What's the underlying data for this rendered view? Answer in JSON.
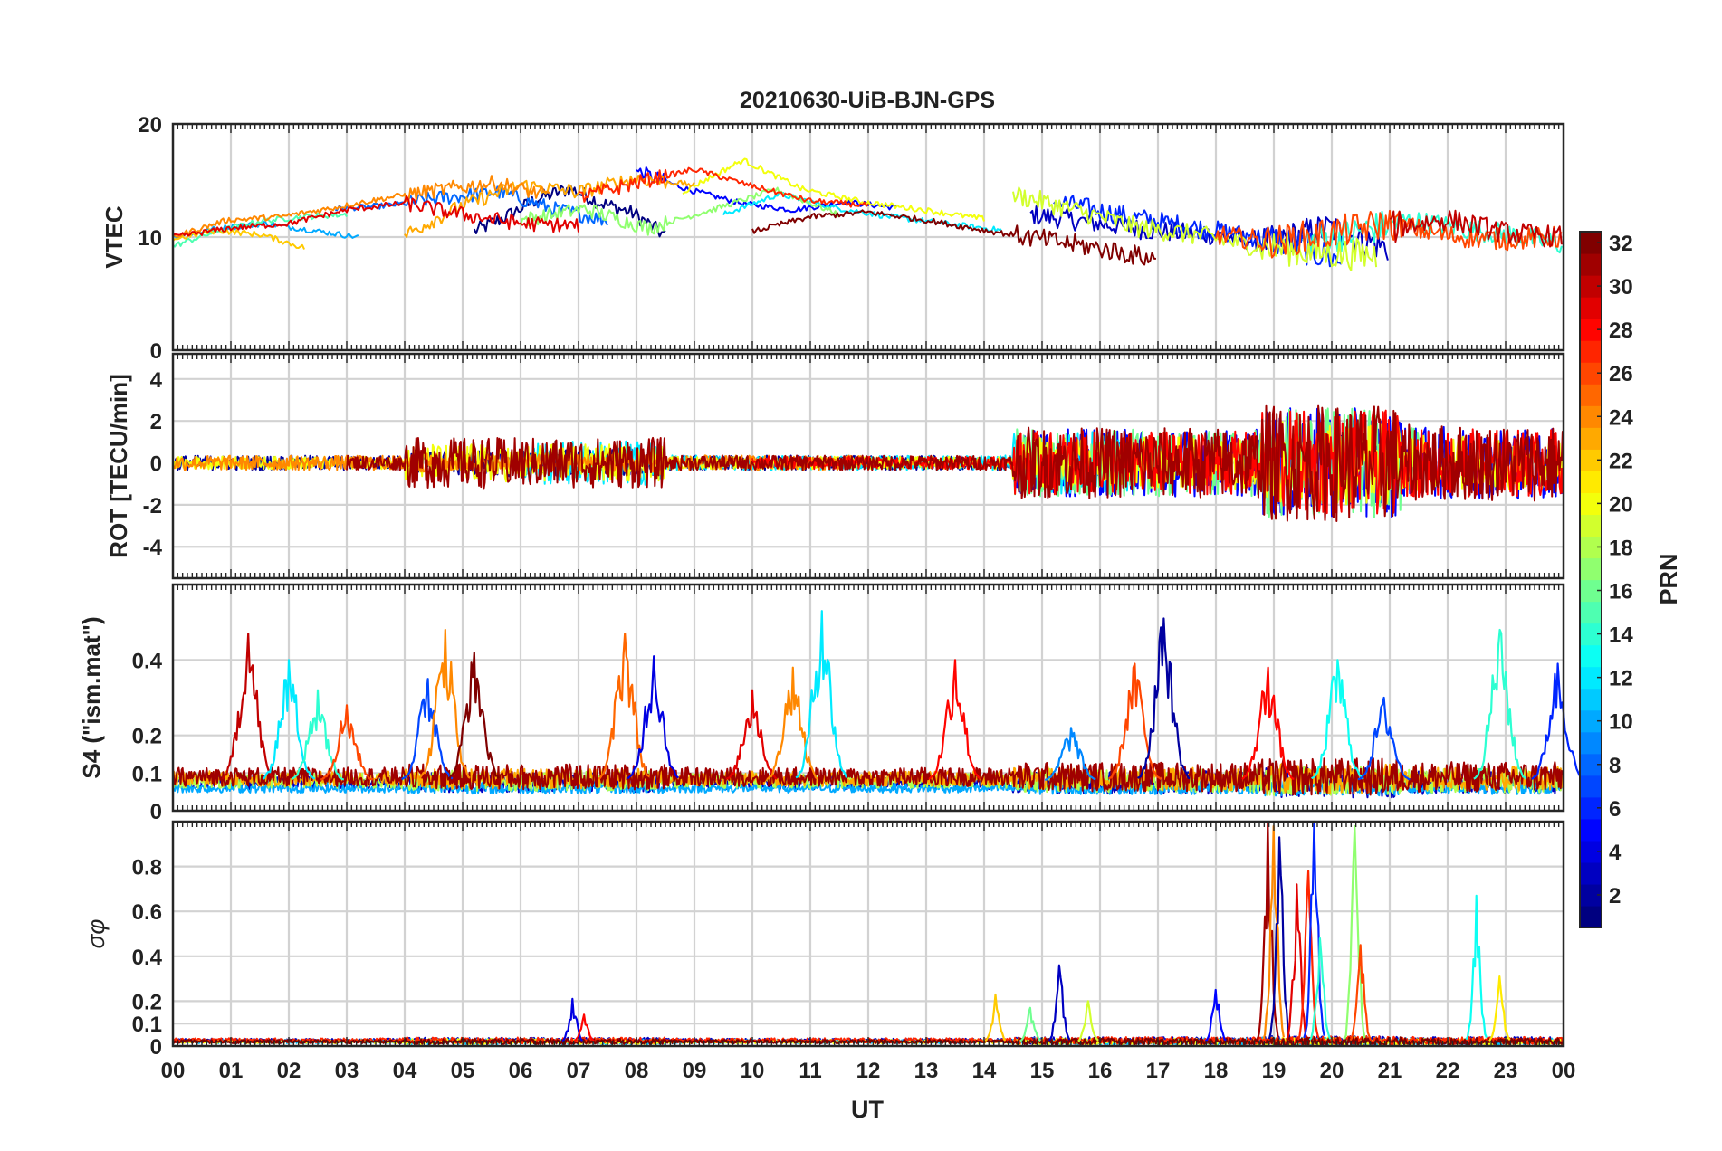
{
  "chart_data": {
    "type": "line",
    "title": "20210630-UiB-BJN-GPS",
    "xlabel": "UT",
    "xlim": [
      0,
      24
    ],
    "x_tick_labels": [
      "00",
      "01",
      "02",
      "03",
      "04",
      "05",
      "06",
      "07",
      "08",
      "09",
      "10",
      "11",
      "12",
      "13",
      "14",
      "15",
      "16",
      "17",
      "18",
      "19",
      "20",
      "21",
      "22",
      "23",
      "00"
    ],
    "grid": true,
    "colorbar": {
      "label": "PRN",
      "range": [
        1,
        32
      ],
      "ticks": [
        2,
        4,
        6,
        8,
        10,
        12,
        14,
        16,
        18,
        20,
        22,
        24,
        26,
        28,
        30,
        32
      ],
      "tick_labels": [
        "2",
        "4",
        "6",
        "8",
        "10",
        "12",
        "14",
        "16",
        "18",
        "20",
        "22",
        "24",
        "26",
        "28",
        "30",
        "32"
      ],
      "colormap": "jet",
      "placement": "right"
    },
    "panels": [
      {
        "id": "vtec",
        "ylabel": "VTEC",
        "ylim": [
          0,
          20
        ],
        "yticks": [
          0,
          10,
          20
        ],
        "ytick_labels": [
          "0",
          "10",
          "20"
        ],
        "series": [
          {
            "prn": 1,
            "start": 5.2,
            "end": 8.5,
            "values": [
              10.5,
              11.8,
              13.4,
              14.3,
              13.0,
              12.1,
              10.1
            ]
          },
          {
            "prn": 3,
            "start": 14.8,
            "end": 21.0,
            "values": [
              12.0,
              11.3,
              10.6,
              10.2,
              9.5,
              10.8,
              9.0
            ]
          },
          {
            "prn": 5,
            "start": 8.0,
            "end": 12.5,
            "values": [
              15.8,
              14.2,
              13.0,
              12.4,
              13.1,
              12.6
            ]
          },
          {
            "prn": 6,
            "start": 15.2,
            "end": 20.2,
            "values": [
              13.2,
              12.1,
              11.2,
              10.4,
              9.6,
              7.8
            ]
          },
          {
            "prn": 8,
            "start": 2.8,
            "end": 7.5,
            "values": [
              12.5,
              12.8,
              13.5,
              14.0,
              12.5,
              11.5
            ]
          },
          {
            "prn": 10,
            "start": 0.0,
            "end": 3.2,
            "values": [
              10.0,
              10.8,
              11.2,
              10.6,
              10.0
            ]
          },
          {
            "prn": 12,
            "start": 9.5,
            "end": 14.3,
            "values": [
              12.0,
              13.8,
              12.6,
              11.8,
              11.2,
              10.6
            ]
          },
          {
            "prn": 14,
            "start": 19.5,
            "end": 24.0,
            "values": [
              9.5,
              10.4,
              11.5,
              10.8,
              10.2,
              9.3
            ]
          },
          {
            "prn": 15,
            "start": 0.0,
            "end": 3.0,
            "values": [
              9.2,
              10.5,
              11.4,
              11.8,
              12.0
            ]
          },
          {
            "prn": 17,
            "start": 6.0,
            "end": 11.5,
            "values": [
              11.5,
              12.5,
              10.8,
              12.4,
              14.2,
              12.0
            ]
          },
          {
            "prn": 19,
            "start": 14.5,
            "end": 20.8,
            "values": [
              13.8,
              12.4,
              10.9,
              10.2,
              9.2,
              8.6,
              8.4
            ]
          },
          {
            "prn": 20,
            "start": 8.8,
            "end": 14.0,
            "values": [
              14.0,
              16.8,
              14.2,
              13.1,
              12.4,
              11.6
            ]
          },
          {
            "prn": 22,
            "start": 0.0,
            "end": 2.3,
            "values": [
              9.8,
              10.6,
              10.2,
              9.0
            ]
          },
          {
            "prn": 23,
            "start": 4.0,
            "end": 9.0,
            "values": [
              10.2,
              12.8,
              14.6,
              14.0,
              15.2,
              14.6
            ]
          },
          {
            "prn": 24,
            "start": 0.0,
            "end": 6.5,
            "values": [
              10.0,
              11.5,
              11.8,
              12.6,
              13.5,
              14.2,
              14.8,
              13.6
            ]
          },
          {
            "prn": 26,
            "start": 18.0,
            "end": 24.0,
            "values": [
              10.2,
              9.6,
              10.4,
              11.2,
              10.1,
              9.8,
              10.0
            ]
          },
          {
            "prn": 27,
            "start": 7.0,
            "end": 12.0,
            "values": [
              13.5,
              14.8,
              16.0,
              14.5,
              13.2,
              12.8
            ]
          },
          {
            "prn": 29,
            "start": 0.0,
            "end": 7.0,
            "values": [
              10.0,
              10.8,
              11.2,
              12.4,
              13.0,
              12.0,
              11.2,
              11.0
            ]
          },
          {
            "prn": 30,
            "start": 21.0,
            "end": 24.0,
            "values": [
              10.8,
              11.6,
              10.4,
              10.0
            ]
          },
          {
            "prn": 32,
            "start": 10.0,
            "end": 17.0,
            "values": [
              10.5,
              11.8,
              12.2,
              11.5,
              10.6,
              9.8,
              9.0,
              8.0
            ]
          }
        ]
      },
      {
        "id": "rot",
        "ylabel": "ROT [TECU/min]",
        "ylim": [
          -5.5,
          5.2
        ],
        "yticks": [
          -4,
          -2,
          0,
          2,
          4
        ],
        "ytick_labels": [
          "-4",
          "-2",
          "0",
          "2",
          "4"
        ],
        "series": [
          {
            "prn": 2,
            "kind": "noise",
            "start": 0.0,
            "end": 14.5,
            "baseline": 0,
            "quiet": 0.35,
            "active": 1.2
          },
          {
            "prn": 5,
            "kind": "noise",
            "start": 14.5,
            "end": 24.0,
            "baseline": 0,
            "quiet": 0.4,
            "active": 2.6
          },
          {
            "prn": 12,
            "kind": "noise",
            "start": 6.0,
            "end": 16.5,
            "baseline": 0,
            "quiet": 0.35,
            "active": 2.4
          },
          {
            "prn": 16,
            "kind": "noise",
            "start": 14.5,
            "end": 21.5,
            "baseline": 0,
            "quiet": 0.4,
            "active": 2.6
          },
          {
            "prn": 20,
            "kind": "noise",
            "start": 0.0,
            "end": 24.0,
            "baseline": 0,
            "quiet": 0.3,
            "active": 2.0
          },
          {
            "prn": 24,
            "kind": "noise",
            "start": 0.0,
            "end": 12.0,
            "baseline": 0,
            "quiet": 0.35,
            "active": 0.6
          },
          {
            "prn": 28,
            "kind": "noise",
            "start": 10.0,
            "end": 24.0,
            "baseline": 0,
            "quiet": 0.3,
            "active": 2.5
          },
          {
            "prn": 31,
            "kind": "noise",
            "start": 3.0,
            "end": 24.0,
            "baseline": 0,
            "quiet": 0.35,
            "active": 2.8
          }
        ]
      },
      {
        "id": "s4",
        "ylabel": "S4 (\"ism.mat\")",
        "ylim": [
          0,
          0.6
        ],
        "yticks": [
          0,
          0.1,
          0.2,
          0.4
        ],
        "ytick_labels": [
          "0",
          "0.1",
          "0.2",
          "0.4"
        ],
        "series": [
          {
            "prn": 3,
            "kind": "noise",
            "start": 0.0,
            "end": 24.0,
            "baseline": 0.075,
            "quiet": 0.018,
            "active": 0.04
          },
          {
            "prn": 10,
            "kind": "noise",
            "start": 0.0,
            "end": 24.0,
            "baseline": 0.06,
            "quiet": 0.012,
            "active": 0.02
          },
          {
            "prn": 18,
            "kind": "noise",
            "start": 0.0,
            "end": 24.0,
            "baseline": 0.08,
            "quiet": 0.02,
            "active": 0.04
          },
          {
            "prn": 23,
            "kind": "noise",
            "start": 0.0,
            "end": 24.0,
            "baseline": 0.085,
            "quiet": 0.02,
            "active": 0.04
          },
          {
            "prn": 31,
            "kind": "noise",
            "start": 0.0,
            "end": 24.0,
            "baseline": 0.09,
            "quiet": 0.025,
            "active": 0.05
          }
        ],
        "peaks": [
          {
            "prn": 30,
            "time": 1.3,
            "value": 0.47
          },
          {
            "prn": 12,
            "time": 2.0,
            "value": 0.4
          },
          {
            "prn": 14,
            "time": 2.5,
            "value": 0.32
          },
          {
            "prn": 26,
            "time": 3.0,
            "value": 0.28
          },
          {
            "prn": 7,
            "time": 4.4,
            "value": 0.35
          },
          {
            "prn": 24,
            "time": 4.7,
            "value": 0.48
          },
          {
            "prn": 32,
            "time": 5.2,
            "value": 0.42
          },
          {
            "prn": 25,
            "time": 7.8,
            "value": 0.47
          },
          {
            "prn": 4,
            "time": 8.3,
            "value": 0.41
          },
          {
            "prn": 29,
            "time": 10.0,
            "value": 0.32
          },
          {
            "prn": 24,
            "time": 10.7,
            "value": 0.38
          },
          {
            "prn": 12,
            "time": 11.2,
            "value": 0.53
          },
          {
            "prn": 28,
            "time": 13.5,
            "value": 0.4
          },
          {
            "prn": 9,
            "time": 15.5,
            "value": 0.22
          },
          {
            "prn": 26,
            "time": 16.6,
            "value": 0.39
          },
          {
            "prn": 2,
            "time": 17.1,
            "value": 0.51
          },
          {
            "prn": 28,
            "time": 18.9,
            "value": 0.38
          },
          {
            "prn": 13,
            "time": 20.1,
            "value": 0.4
          },
          {
            "prn": 7,
            "time": 20.9,
            "value": 0.3
          },
          {
            "prn": 14,
            "time": 22.9,
            "value": 0.48
          },
          {
            "prn": 6,
            "time": 23.9,
            "value": 0.39
          }
        ]
      },
      {
        "id": "sigma",
        "ylabel": "σφ",
        "ylim": [
          0,
          1.0
        ],
        "yticks": [
          0,
          0.1,
          0.2,
          0.4,
          0.6,
          0.8
        ],
        "ytick_labels": [
          "0",
          "0.1",
          "0.2",
          "0.4",
          "0.6",
          "0.8"
        ],
        "series": [
          {
            "prn": 3,
            "kind": "noise",
            "start": 0.0,
            "end": 24.0,
            "baseline": 0.025,
            "quiet": 0.008,
            "active": 0.02
          },
          {
            "prn": 11,
            "kind": "noise",
            "start": 0.0,
            "end": 24.0,
            "baseline": 0.02,
            "quiet": 0.008,
            "active": 0.02
          },
          {
            "prn": 20,
            "kind": "noise",
            "start": 0.0,
            "end": 24.0,
            "baseline": 0.02,
            "quiet": 0.008,
            "active": 0.02
          },
          {
            "prn": 27,
            "kind": "noise",
            "start": 0.0,
            "end": 24.0,
            "baseline": 0.025,
            "quiet": 0.01,
            "active": 0.02
          },
          {
            "prn": 32,
            "kind": "noise",
            "start": 0.0,
            "end": 24.0,
            "baseline": 0.02,
            "quiet": 0.008,
            "active": 0.02
          }
        ],
        "peaks": [
          {
            "prn": 4,
            "time": 6.9,
            "value": 0.21
          },
          {
            "prn": 28,
            "time": 7.1,
            "value": 0.14
          },
          {
            "prn": 22,
            "time": 14.2,
            "value": 0.23
          },
          {
            "prn": 16,
            "time": 14.8,
            "value": 0.17
          },
          {
            "prn": 3,
            "time": 15.3,
            "value": 0.36
          },
          {
            "prn": 19,
            "time": 15.8,
            "value": 0.2
          },
          {
            "prn": 5,
            "time": 18.0,
            "value": 0.25
          },
          {
            "prn": 31,
            "time": 18.9,
            "value": 1.0
          },
          {
            "prn": 24,
            "time": 19.0,
            "value": 0.98
          },
          {
            "prn": 2,
            "time": 19.1,
            "value": 0.93
          },
          {
            "prn": 29,
            "time": 19.4,
            "value": 0.72
          },
          {
            "prn": 27,
            "time": 19.6,
            "value": 0.78
          },
          {
            "prn": 6,
            "time": 19.7,
            "value": 1.0
          },
          {
            "prn": 14,
            "time": 19.8,
            "value": 0.48
          },
          {
            "prn": 17,
            "time": 20.4,
            "value": 0.98
          },
          {
            "prn": 26,
            "time": 20.5,
            "value": 0.45
          },
          {
            "prn": 13,
            "time": 22.5,
            "value": 0.67
          },
          {
            "prn": 21,
            "time": 22.9,
            "value": 0.31
          }
        ]
      }
    ]
  }
}
